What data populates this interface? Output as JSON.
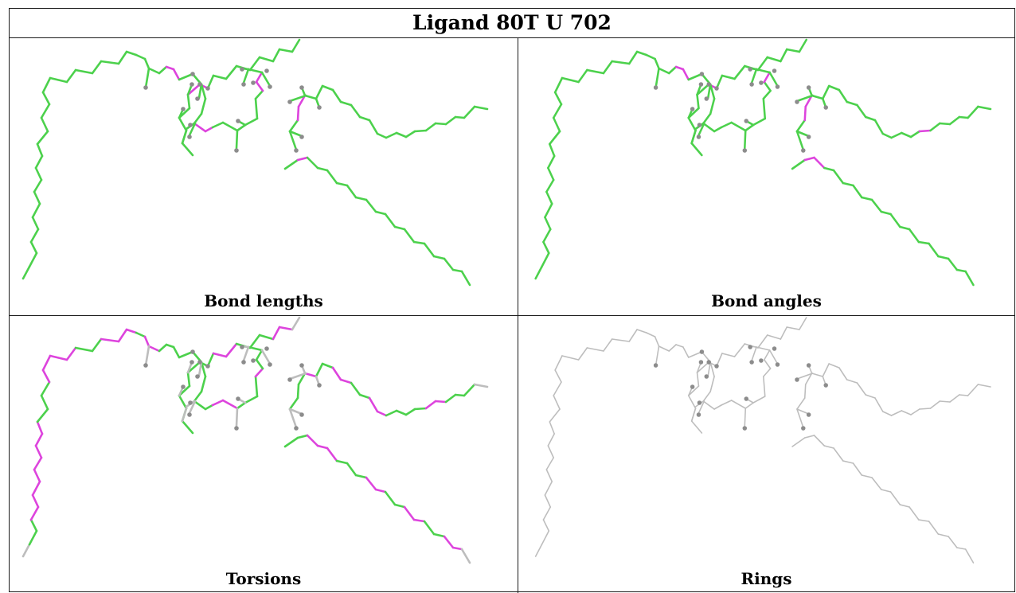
{
  "title": "Ligand 80T U 702",
  "panels": [
    {
      "caption": "Bond lengths",
      "scheme": "lengths"
    },
    {
      "caption": "Bond angles",
      "scheme": "angles"
    },
    {
      "caption": "Torsions",
      "scheme": "torsions"
    },
    {
      "caption": "Rings",
      "scheme": "rings"
    }
  ],
  "colors": {
    "ok": "#4cd14c",
    "outlier": "#dd44dd",
    "neutral": "#bdbdbd",
    "atom": "#8c8c8c",
    "border": "#1a1a1a"
  }
}
